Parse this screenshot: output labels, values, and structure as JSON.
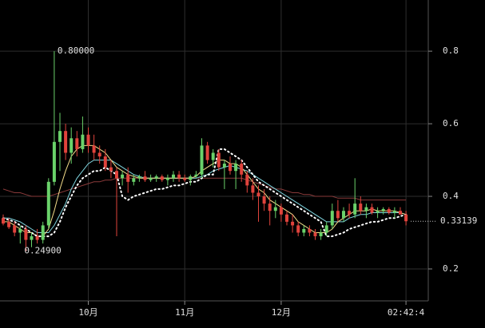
{
  "chart_data": {
    "type": "candlestick",
    "up_color": "#6ad26a",
    "down_color": "#e0433c",
    "ylim": [
      0.112,
      0.941
    ],
    "yticks": [
      0.2,
      0.4,
      0.6,
      0.8
    ],
    "grid": true,
    "categories": [
      null,
      null,
      null,
      null,
      null,
      null,
      null,
      null,
      null,
      null,
      null,
      null,
      null,
      null,
      null,
      "10月",
      null,
      null,
      null,
      null,
      null,
      null,
      null,
      null,
      null,
      null,
      null,
      null,
      null,
      null,
      null,
      null,
      "11月",
      null,
      null,
      null,
      null,
      null,
      null,
      null,
      null,
      null,
      null,
      null,
      null,
      null,
      null,
      null,
      null,
      "12月",
      null,
      null,
      null,
      null,
      null,
      null,
      null,
      null,
      null,
      null,
      null,
      null,
      null,
      null,
      null,
      null,
      null,
      null,
      null,
      null,
      null,
      "02:42:4"
    ],
    "ohlc": [
      [
        0.34,
        0.35,
        0.32,
        0.325
      ],
      [
        0.33,
        0.34,
        0.31,
        0.315
      ],
      [
        0.32,
        0.33,
        0.29,
        0.3
      ],
      [
        0.3,
        0.32,
        0.27,
        0.31
      ],
      [
        0.31,
        0.32,
        0.249,
        0.28
      ],
      [
        0.28,
        0.3,
        0.26,
        0.29
      ],
      [
        0.29,
        0.31,
        0.27,
        0.28
      ],
      [
        0.28,
        0.33,
        0.27,
        0.32
      ],
      [
        0.32,
        0.45,
        0.31,
        0.44
      ],
      [
        0.44,
        0.8,
        0.43,
        0.55
      ],
      [
        0.55,
        0.63,
        0.47,
        0.58
      ],
      [
        0.58,
        0.6,
        0.5,
        0.52
      ],
      [
        0.52,
        0.59,
        0.49,
        0.56
      ],
      [
        0.56,
        0.58,
        0.51,
        0.53
      ],
      [
        0.53,
        0.62,
        0.52,
        0.57
      ],
      [
        0.57,
        0.59,
        0.52,
        0.54
      ],
      [
        0.54,
        0.57,
        0.5,
        0.52
      ],
      [
        0.52,
        0.54,
        0.49,
        0.51
      ],
      [
        0.51,
        0.53,
        0.47,
        0.48
      ],
      [
        0.48,
        0.5,
        0.45,
        0.47
      ],
      [
        0.47,
        0.48,
        0.29,
        0.45
      ],
      [
        0.45,
        0.47,
        0.43,
        0.46
      ],
      [
        0.46,
        0.48,
        0.41,
        0.44
      ],
      [
        0.44,
        0.46,
        0.43,
        0.45
      ],
      [
        0.45,
        0.46,
        0.44,
        0.455
      ],
      [
        0.455,
        0.47,
        0.44,
        0.445
      ],
      [
        0.445,
        0.46,
        0.44,
        0.45
      ],
      [
        0.45,
        0.46,
        0.44,
        0.455
      ],
      [
        0.455,
        0.46,
        0.44,
        0.445
      ],
      [
        0.445,
        0.46,
        0.43,
        0.45
      ],
      [
        0.45,
        0.47,
        0.44,
        0.46
      ],
      [
        0.46,
        0.47,
        0.44,
        0.45
      ],
      [
        0.45,
        0.46,
        0.44,
        0.445
      ],
      [
        0.445,
        0.46,
        0.43,
        0.455
      ],
      [
        0.455,
        0.47,
        0.45,
        0.46
      ],
      [
        0.46,
        0.56,
        0.45,
        0.54
      ],
      [
        0.54,
        0.55,
        0.49,
        0.5
      ],
      [
        0.5,
        0.53,
        0.48,
        0.52
      ],
      [
        0.52,
        0.53,
        0.47,
        0.48
      ],
      [
        0.48,
        0.5,
        0.42,
        0.49
      ],
      [
        0.49,
        0.51,
        0.46,
        0.47
      ],
      [
        0.47,
        0.5,
        0.42,
        0.49
      ],
      [
        0.49,
        0.5,
        0.44,
        0.46
      ],
      [
        0.46,
        0.47,
        0.41,
        0.43
      ],
      [
        0.43,
        0.45,
        0.39,
        0.41
      ],
      [
        0.41,
        0.43,
        0.33,
        0.4
      ],
      [
        0.4,
        0.42,
        0.36,
        0.38
      ],
      [
        0.38,
        0.4,
        0.32,
        0.36
      ],
      [
        0.36,
        0.39,
        0.34,
        0.37
      ],
      [
        0.37,
        0.38,
        0.33,
        0.35
      ],
      [
        0.35,
        0.36,
        0.32,
        0.33
      ],
      [
        0.33,
        0.35,
        0.3,
        0.32
      ],
      [
        0.32,
        0.33,
        0.29,
        0.3
      ],
      [
        0.3,
        0.32,
        0.29,
        0.31
      ],
      [
        0.31,
        0.32,
        0.29,
        0.3
      ],
      [
        0.3,
        0.31,
        0.28,
        0.29
      ],
      [
        0.29,
        0.31,
        0.28,
        0.3
      ],
      [
        0.3,
        0.33,
        0.29,
        0.32
      ],
      [
        0.32,
        0.38,
        0.31,
        0.36
      ],
      [
        0.36,
        0.39,
        0.33,
        0.34
      ],
      [
        0.34,
        0.37,
        0.33,
        0.36
      ],
      [
        0.36,
        0.38,
        0.34,
        0.35
      ],
      [
        0.35,
        0.45,
        0.34,
        0.38
      ],
      [
        0.38,
        0.4,
        0.35,
        0.36
      ],
      [
        0.36,
        0.38,
        0.34,
        0.37
      ],
      [
        0.37,
        0.38,
        0.35,
        0.355
      ],
      [
        0.355,
        0.37,
        0.34,
        0.36
      ],
      [
        0.36,
        0.37,
        0.35,
        0.365
      ],
      [
        0.365,
        0.37,
        0.35,
        0.355
      ],
      [
        0.355,
        0.37,
        0.34,
        0.36
      ],
      [
        0.36,
        0.37,
        0.35,
        0.35
      ],
      [
        0.35,
        0.36,
        0.32,
        0.33139
      ]
    ],
    "lines": [
      {
        "color": "#8a3a3a",
        "style": "solid",
        "values": [
          0.42,
          0.415,
          0.41,
          0.41,
          0.405,
          0.4,
          0.4,
          0.4,
          0.4,
          0.405,
          0.41,
          0.415,
          0.42,
          0.425,
          0.43,
          0.435,
          0.44,
          0.44,
          0.445,
          0.445,
          0.45,
          0.45,
          0.45,
          0.45,
          0.45,
          0.45,
          0.45,
          0.45,
          0.45,
          0.45,
          0.45,
          0.45,
          0.45,
          0.45,
          0.45,
          0.45,
          0.45,
          0.45,
          0.45,
          0.45,
          0.45,
          0.45,
          0.45,
          0.445,
          0.44,
          0.435,
          0.43,
          0.425,
          0.42,
          0.42,
          0.415,
          0.41,
          0.41,
          0.405,
          0.405,
          0.4,
          0.4,
          0.4,
          0.4,
          0.395,
          0.395,
          0.395,
          0.395,
          0.39,
          0.39,
          0.39,
          0.39,
          0.39,
          0.39,
          0.39,
          0.39,
          0.39
        ]
      },
      {
        "color": "#7fd6e0",
        "style": "solid",
        "values": [
          0.34,
          0.34,
          0.335,
          0.33,
          0.32,
          0.31,
          0.3,
          0.3,
          0.3,
          0.32,
          0.35,
          0.38,
          0.42,
          0.45,
          0.47,
          0.49,
          0.5,
          0.5,
          0.5,
          0.5,
          0.49,
          0.48,
          0.47,
          0.46,
          0.455,
          0.45,
          0.45,
          0.45,
          0.45,
          0.45,
          0.45,
          0.45,
          0.45,
          0.45,
          0.45,
          0.455,
          0.46,
          0.47,
          0.475,
          0.48,
          0.485,
          0.48,
          0.475,
          0.47,
          0.46,
          0.45,
          0.44,
          0.43,
          0.42,
          0.41,
          0.4,
          0.39,
          0.38,
          0.37,
          0.36,
          0.35,
          0.34,
          0.33,
          0.33,
          0.33,
          0.33,
          0.34,
          0.345,
          0.35,
          0.35,
          0.355,
          0.355,
          0.355,
          0.355,
          0.355,
          0.355,
          0.35
        ]
      },
      {
        "color": "#f3dc8a",
        "style": "solid",
        "values": [
          0.33,
          0.33,
          0.32,
          0.31,
          0.3,
          0.3,
          0.29,
          0.29,
          0.31,
          0.36,
          0.42,
          0.47,
          0.51,
          0.53,
          0.54,
          0.54,
          0.54,
          0.53,
          0.52,
          0.5,
          0.48,
          0.47,
          0.46,
          0.455,
          0.45,
          0.45,
          0.45,
          0.45,
          0.45,
          0.45,
          0.45,
          0.45,
          0.45,
          0.45,
          0.455,
          0.47,
          0.48,
          0.49,
          0.5,
          0.5,
          0.49,
          0.49,
          0.48,
          0.46,
          0.44,
          0.42,
          0.41,
          0.39,
          0.38,
          0.37,
          0.36,
          0.35,
          0.33,
          0.32,
          0.31,
          0.3,
          0.3,
          0.3,
          0.31,
          0.33,
          0.34,
          0.35,
          0.36,
          0.36,
          0.36,
          0.365,
          0.36,
          0.36,
          0.36,
          0.36,
          0.355,
          0.35
        ]
      },
      {
        "color": "#ffffff",
        "style": "dotted",
        "values": [
          0.34,
          0.335,
          0.33,
          0.32,
          0.31,
          0.3,
          0.29,
          0.29,
          0.29,
          0.3,
          0.33,
          0.37,
          0.4,
          0.43,
          0.45,
          0.46,
          0.47,
          0.47,
          0.48,
          0.47,
          0.46,
          0.4,
          0.39,
          0.4,
          0.405,
          0.41,
          0.415,
          0.42,
          0.42,
          0.425,
          0.43,
          0.43,
          0.435,
          0.44,
          0.44,
          0.45,
          0.46,
          0.46,
          0.53,
          0.53,
          0.52,
          0.51,
          0.5,
          0.48,
          0.46,
          0.44,
          0.43,
          0.42,
          0.41,
          0.4,
          0.39,
          0.38,
          0.37,
          0.36,
          0.35,
          0.34,
          0.33,
          0.29,
          0.29,
          0.295,
          0.3,
          0.31,
          0.315,
          0.32,
          0.325,
          0.33,
          0.33,
          0.335,
          0.34,
          0.34,
          0.345,
          0.35
        ]
      }
    ],
    "annotations": [
      {
        "value": 0.8,
        "label": "0.80000"
      },
      {
        "value": 0.249,
        "label": "0.24900"
      }
    ]
  }
}
